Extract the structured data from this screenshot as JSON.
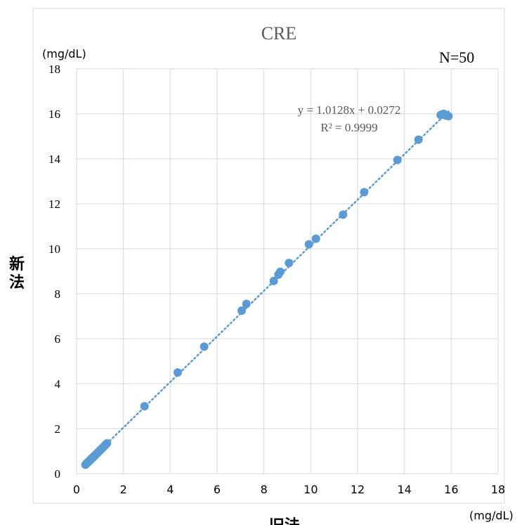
{
  "chart_data": {
    "type": "scatter",
    "title": "CRE",
    "xlabel": "旧法",
    "ylabel": "新法",
    "x_unit": "(mg/dL)",
    "y_unit": "(mg/dL)",
    "n_label": "N=50",
    "trendline": {
      "equation": "y = 1.0128x + 0.0272",
      "r_squared": "R² = 0.9999",
      "slope": 1.0128,
      "intercept": 0.0272,
      "style": "dotted"
    },
    "xlim": [
      0,
      18
    ],
    "ylim": [
      0,
      18
    ],
    "xticks": [
      "0",
      "2",
      "4",
      "6",
      "8",
      "10",
      "12",
      "14",
      "16",
      "18"
    ],
    "yticks": [
      "0",
      "2",
      "4",
      "6",
      "8",
      "10",
      "12",
      "14",
      "16",
      "18"
    ],
    "grid": true,
    "marker_color": "#5b9bd5",
    "trendline_color": "#5b9bd5",
    "points": [
      [
        0.38,
        0.4
      ],
      [
        0.42,
        0.45
      ],
      [
        0.45,
        0.48
      ],
      [
        0.48,
        0.5
      ],
      [
        0.5,
        0.53
      ],
      [
        0.53,
        0.55
      ],
      [
        0.55,
        0.58
      ],
      [
        0.58,
        0.6
      ],
      [
        0.6,
        0.63
      ],
      [
        0.62,
        0.65
      ],
      [
        0.65,
        0.68
      ],
      [
        0.68,
        0.7
      ],
      [
        0.7,
        0.73
      ],
      [
        0.72,
        0.75
      ],
      [
        0.75,
        0.78
      ],
      [
        0.78,
        0.8
      ],
      [
        0.8,
        0.83
      ],
      [
        0.83,
        0.86
      ],
      [
        0.86,
        0.89
      ],
      [
        0.9,
        0.93
      ],
      [
        0.93,
        0.96
      ],
      [
        0.97,
        1.0
      ],
      [
        1.0,
        1.04
      ],
      [
        1.03,
        1.07
      ],
      [
        1.07,
        1.11
      ],
      [
        1.1,
        1.14
      ],
      [
        1.15,
        1.19
      ],
      [
        1.2,
        1.24
      ],
      [
        1.25,
        1.3
      ],
      [
        1.3,
        1.35
      ],
      [
        2.9,
        3.0
      ],
      [
        4.32,
        4.5
      ],
      [
        5.45,
        5.65
      ],
      [
        7.05,
        7.25
      ],
      [
        7.25,
        7.55
      ],
      [
        8.42,
        8.57
      ],
      [
        8.62,
        8.85
      ],
      [
        8.7,
        8.98
      ],
      [
        9.07,
        9.37
      ],
      [
        9.92,
        10.2
      ],
      [
        10.22,
        10.45
      ],
      [
        11.38,
        11.52
      ],
      [
        12.28,
        12.52
      ],
      [
        13.7,
        13.95
      ],
      [
        14.6,
        14.85
      ],
      [
        15.55,
        15.95
      ],
      [
        15.62,
        15.98
      ],
      [
        15.68,
        16.0
      ],
      [
        15.78,
        15.92
      ],
      [
        15.88,
        15.9
      ]
    ]
  }
}
